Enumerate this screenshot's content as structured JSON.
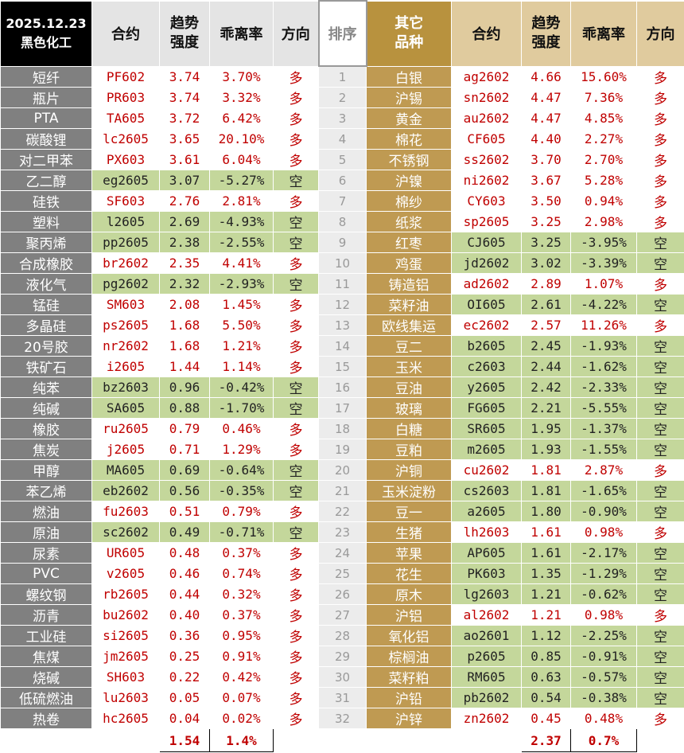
{
  "header": {
    "date": "2025.12.23",
    "left_group": "黑色化工",
    "right_group": "其它品种",
    "columns": [
      "合约",
      "趋势强度",
      "乖离率",
      "方向"
    ],
    "rank": "排序"
  },
  "ranks": [
    "1",
    "2",
    "3",
    "4",
    "5",
    "6",
    "7",
    "8",
    "9",
    "10",
    "11",
    "12",
    "13",
    "14",
    "15",
    "16",
    "17",
    "18",
    "19",
    "20",
    "21",
    "22",
    "23",
    "24",
    "25",
    "26",
    "27",
    "28",
    "29",
    "30",
    "31",
    "32"
  ],
  "left": {
    "rows": [
      [
        "短纤",
        "PF602",
        "3.74",
        "3.70%",
        "多"
      ],
      [
        "瓶片",
        "PR603",
        "3.74",
        "3.32%",
        "多"
      ],
      [
        "PTA",
        "TA605",
        "3.72",
        "6.42%",
        "多"
      ],
      [
        "碳酸锂",
        "lc2605",
        "3.65",
        "20.10%",
        "多"
      ],
      [
        "对二甲苯",
        "PX603",
        "3.61",
        "6.04%",
        "多"
      ],
      [
        "乙二醇",
        "eg2605",
        "3.07",
        "-5.27%",
        "空"
      ],
      [
        "硅铁",
        "SF603",
        "2.76",
        "2.81%",
        "多"
      ],
      [
        "塑料",
        "l2605",
        "2.69",
        "-4.93%",
        "空"
      ],
      [
        "聚丙烯",
        "pp2605",
        "2.38",
        "-2.55%",
        "空"
      ],
      [
        "合成橡胶",
        "br2602",
        "2.35",
        "4.41%",
        "多"
      ],
      [
        "液化气",
        "pg2602",
        "2.32",
        "-2.93%",
        "空"
      ],
      [
        "锰硅",
        "SM603",
        "2.08",
        "1.45%",
        "多"
      ],
      [
        "多晶硅",
        "ps2605",
        "1.68",
        "5.50%",
        "多"
      ],
      [
        "20号胶",
        "nr2602",
        "1.68",
        "1.21%",
        "多"
      ],
      [
        "铁矿石",
        "i2605",
        "1.44",
        "1.14%",
        "多"
      ],
      [
        "纯苯",
        "bz2603",
        "0.96",
        "-0.42%",
        "空"
      ],
      [
        "纯碱",
        "SA605",
        "0.88",
        "-1.70%",
        "空"
      ],
      [
        "橡胶",
        "ru2605",
        "0.79",
        "0.46%",
        "多"
      ],
      [
        "焦炭",
        "j2605",
        "0.71",
        "1.29%",
        "多"
      ],
      [
        "甲醇",
        "MA605",
        "0.69",
        "-0.64%",
        "空"
      ],
      [
        "苯乙烯",
        "eb2602",
        "0.56",
        "-0.35%",
        "空"
      ],
      [
        "燃油",
        "fu2603",
        "0.51",
        "0.79%",
        "多"
      ],
      [
        "原油",
        "sc2602",
        "0.49",
        "-0.71%",
        "空"
      ],
      [
        "尿素",
        "UR605",
        "0.48",
        "0.37%",
        "多"
      ],
      [
        "PVC",
        "v2605",
        "0.46",
        "0.74%",
        "多"
      ],
      [
        "螺纹钢",
        "rb2605",
        "0.44",
        "0.32%",
        "多"
      ],
      [
        "沥青",
        "bu2602",
        "0.40",
        "0.37%",
        "多"
      ],
      [
        "工业硅",
        "si2605",
        "0.36",
        "0.95%",
        "多"
      ],
      [
        "焦煤",
        "jm2605",
        "0.25",
        "0.91%",
        "多"
      ],
      [
        "烧碱",
        "SH603",
        "0.22",
        "0.42%",
        "多"
      ],
      [
        "低硫燃油",
        "lu2603",
        "0.05",
        "0.07%",
        "多"
      ],
      [
        "热卷",
        "hc2605",
        "0.04",
        "0.02%",
        "多"
      ]
    ],
    "summary": [
      "1.54",
      "1.4%"
    ]
  },
  "right": {
    "rows": [
      [
        "白银",
        "ag2602",
        "4.66",
        "15.60%",
        "多"
      ],
      [
        "沪锡",
        "sn2602",
        "4.47",
        "7.36%",
        "多"
      ],
      [
        "黄金",
        "au2602",
        "4.47",
        "4.85%",
        "多"
      ],
      [
        "棉花",
        "CF605",
        "4.40",
        "2.27%",
        "多"
      ],
      [
        "不锈钢",
        "ss2602",
        "3.70",
        "2.70%",
        "多"
      ],
      [
        "沪镍",
        "ni2602",
        "3.67",
        "5.28%",
        "多"
      ],
      [
        "棉纱",
        "CY603",
        "3.50",
        "0.94%",
        "多"
      ],
      [
        "纸浆",
        "sp2605",
        "3.25",
        "2.98%",
        "多"
      ],
      [
        "红枣",
        "CJ605",
        "3.25",
        "-3.95%",
        "空"
      ],
      [
        "鸡蛋",
        "jd2602",
        "3.02",
        "-3.39%",
        "空"
      ],
      [
        "铸造铝",
        "ad2602",
        "2.89",
        "1.07%",
        "多"
      ],
      [
        "菜籽油",
        "OI605",
        "2.61",
        "-4.22%",
        "空"
      ],
      [
        "欧线集运",
        "ec2602",
        "2.57",
        "11.26%",
        "多"
      ],
      [
        "豆二",
        "b2605",
        "2.45",
        "-1.93%",
        "空"
      ],
      [
        "玉米",
        "c2603",
        "2.44",
        "-1.62%",
        "空"
      ],
      [
        "豆油",
        "y2605",
        "2.42",
        "-2.33%",
        "空"
      ],
      [
        "玻璃",
        "FG605",
        "2.21",
        "-5.55%",
        "空"
      ],
      [
        "白糖",
        "SR605",
        "1.95",
        "-1.37%",
        "空"
      ],
      [
        "豆粕",
        "m2605",
        "1.93",
        "-1.55%",
        "空"
      ],
      [
        "沪铜",
        "cu2602",
        "1.81",
        "2.87%",
        "多"
      ],
      [
        "玉米淀粉",
        "cs2603",
        "1.81",
        "-1.65%",
        "空"
      ],
      [
        "豆一",
        "a2605",
        "1.80",
        "-0.90%",
        "空"
      ],
      [
        "生猪",
        "lh2603",
        "1.61",
        "0.98%",
        "多"
      ],
      [
        "苹果",
        "AP605",
        "1.61",
        "-2.17%",
        "空"
      ],
      [
        "花生",
        "PK603",
        "1.35",
        "-1.29%",
        "空"
      ],
      [
        "原木",
        "lg2603",
        "1.21",
        "-0.62%",
        "空"
      ],
      [
        "沪铝",
        "al2602",
        "1.21",
        "0.98%",
        "多"
      ],
      [
        "氧化铝",
        "ao2601",
        "1.12",
        "-2.25%",
        "空"
      ],
      [
        "棕榈油",
        "p2605",
        "0.85",
        "-0.91%",
        "空"
      ],
      [
        "菜籽粕",
        "RM605",
        "0.63",
        "-0.57%",
        "空"
      ],
      [
        "沪铅",
        "pb2602",
        "0.54",
        "-0.38%",
        "空"
      ],
      [
        "沪锌",
        "zn2602",
        "0.45",
        "0.48%",
        "多"
      ]
    ],
    "summary": [
      "2.37",
      "0.7%"
    ]
  }
}
